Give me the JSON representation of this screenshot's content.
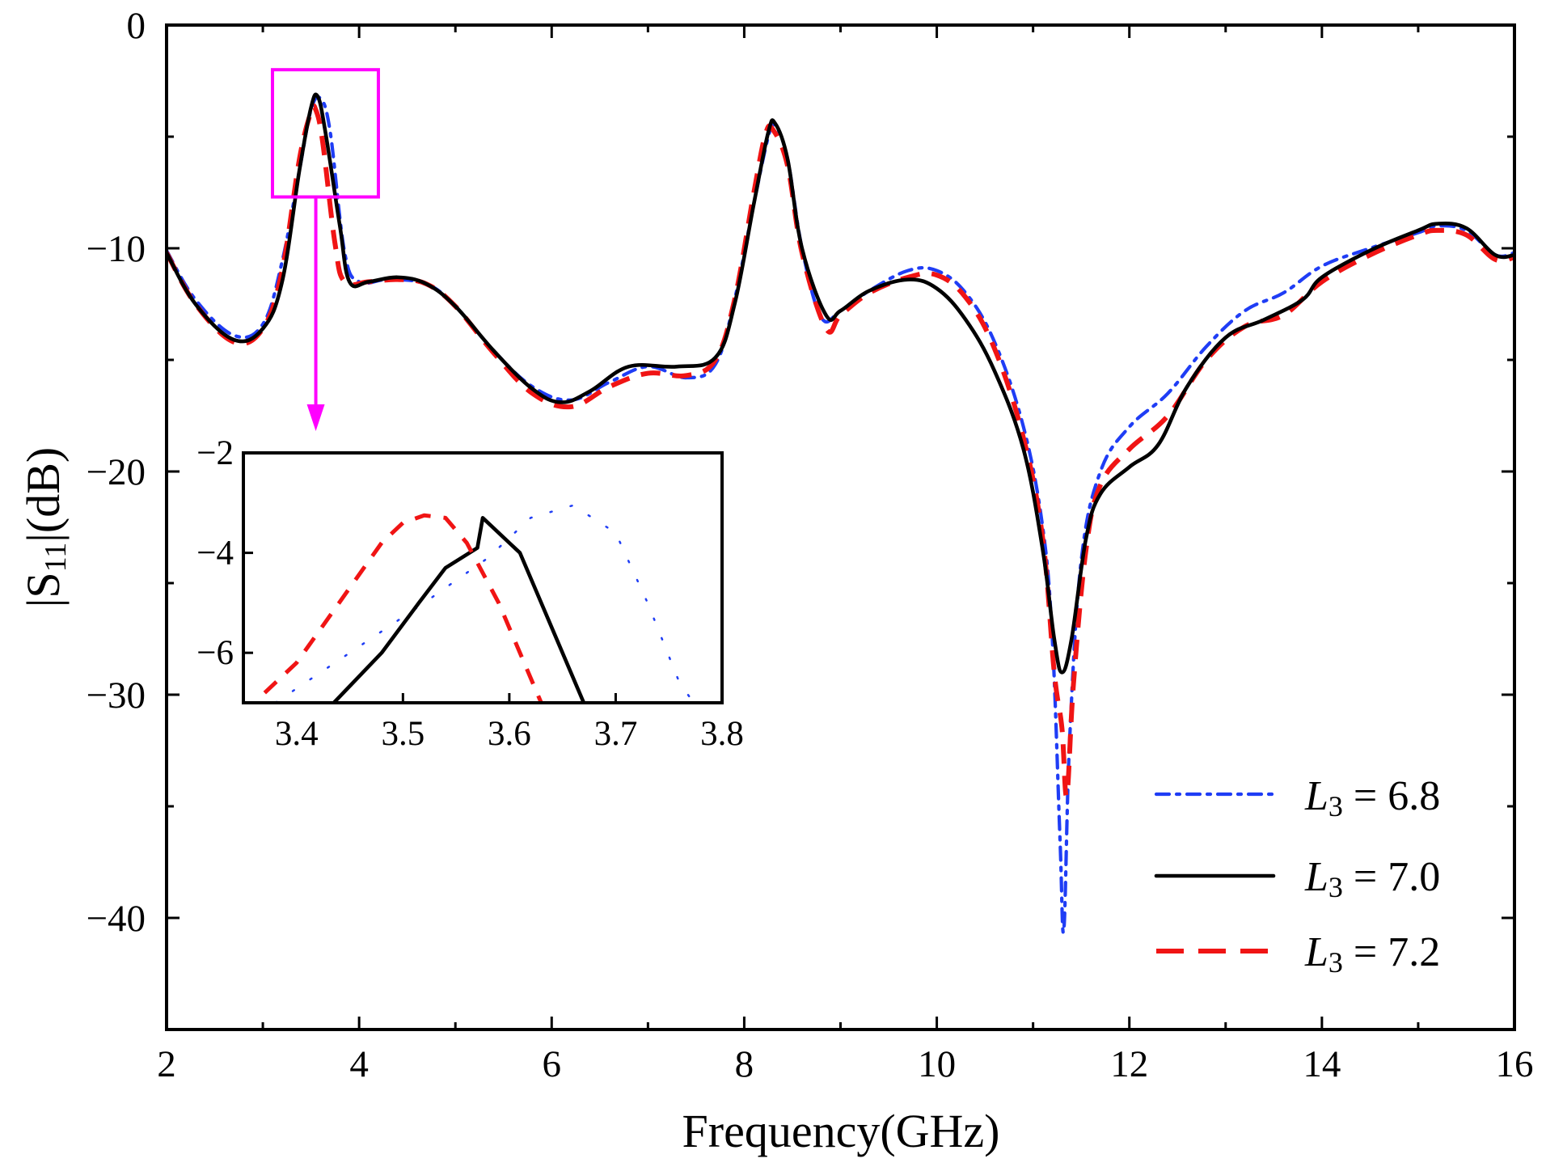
{
  "chart_data": {
    "type": "line",
    "title": "",
    "xlabel": "Frequency(GHz)",
    "ylabel": {
      "pre": "|S",
      "sub": "11",
      "post": "|(dB)"
    },
    "xlim": [
      2,
      16
    ],
    "ylim": [
      -45,
      0
    ],
    "xticks": [
      2,
      4,
      6,
      8,
      10,
      12,
      14,
      16
    ],
    "yticks": [
      0,
      -10,
      -20,
      -30,
      -40
    ],
    "legend_position": "bottom-right",
    "colors": {
      "l3_6_8": "#1f3df5",
      "l3_7_0": "#000000",
      "l3_7_2": "#f01414",
      "zoom_box": "#ff00ff"
    },
    "legend": [
      {
        "symbol": "L",
        "sub": "3",
        "text": " = 6.8"
      },
      {
        "symbol": "L",
        "sub": "3",
        "text": " = 7.0"
      },
      {
        "symbol": "L",
        "sub": "3",
        "text": " = 7.2"
      }
    ],
    "series": [
      {
        "name": "L3 = 6.8",
        "style": "dash-dot",
        "points": [
          [
            2,
            -10.1
          ],
          [
            2.3,
            -12.3
          ],
          [
            2.7,
            -13.9
          ],
          [
            3.0,
            -13.4
          ],
          [
            3.2,
            -10.6
          ],
          [
            3.38,
            -6.5
          ],
          [
            3.5,
            -3.8
          ],
          [
            3.6,
            -3.3
          ],
          [
            3.7,
            -4.8
          ],
          [
            3.85,
            -10.2
          ],
          [
            4.0,
            -11.5
          ],
          [
            4.3,
            -11.4
          ],
          [
            4.7,
            -11.6
          ],
          [
            5.0,
            -12.6
          ],
          [
            5.4,
            -14.6
          ],
          [
            5.8,
            -16.2
          ],
          [
            6.2,
            -16.8
          ],
          [
            6.6,
            -16.0
          ],
          [
            7.0,
            -15.3
          ],
          [
            7.4,
            -15.8
          ],
          [
            7.7,
            -15.2
          ],
          [
            7.9,
            -12.3
          ],
          [
            8.1,
            -8.0
          ],
          [
            8.25,
            -5.0
          ],
          [
            8.32,
            -4.5
          ],
          [
            8.45,
            -6.0
          ],
          [
            8.6,
            -10.0
          ],
          [
            8.8,
            -13.1
          ],
          [
            9.0,
            -12.8
          ],
          [
            9.3,
            -11.9
          ],
          [
            9.7,
            -11.0
          ],
          [
            10.0,
            -11.0
          ],
          [
            10.3,
            -12.0
          ],
          [
            10.6,
            -14.2
          ],
          [
            10.9,
            -18.0
          ],
          [
            11.1,
            -22.5
          ],
          [
            11.2,
            -27.5
          ],
          [
            11.28,
            -36.5
          ],
          [
            11.32,
            -40.5
          ],
          [
            11.38,
            -32.0
          ],
          [
            11.5,
            -24.0
          ],
          [
            11.7,
            -20.0
          ],
          [
            12.0,
            -18.0
          ],
          [
            12.4,
            -16.5
          ],
          [
            12.8,
            -14.4
          ],
          [
            13.2,
            -12.8
          ],
          [
            13.6,
            -12.0
          ],
          [
            14.0,
            -10.8
          ],
          [
            14.5,
            -10.0
          ],
          [
            15.0,
            -9.3
          ],
          [
            15.2,
            -9.0
          ],
          [
            15.5,
            -9.2
          ],
          [
            15.8,
            -10.3
          ],
          [
            16.0,
            -10.2
          ]
        ]
      },
      {
        "name": "L3 = 7.0",
        "style": "solid",
        "points": [
          [
            2,
            -10.2
          ],
          [
            2.3,
            -12.5
          ],
          [
            2.7,
            -14.1
          ],
          [
            3.0,
            -13.6
          ],
          [
            3.2,
            -11.5
          ],
          [
            3.38,
            -6.5
          ],
          [
            3.5,
            -3.7
          ],
          [
            3.57,
            -3.2
          ],
          [
            3.65,
            -4.8
          ],
          [
            3.8,
            -9.0
          ],
          [
            3.9,
            -11.5
          ],
          [
            4.1,
            -11.5
          ],
          [
            4.4,
            -11.3
          ],
          [
            4.7,
            -11.6
          ],
          [
            5.0,
            -12.6
          ],
          [
            5.4,
            -14.6
          ],
          [
            5.8,
            -16.3
          ],
          [
            6.1,
            -16.9
          ],
          [
            6.4,
            -16.4
          ],
          [
            6.8,
            -15.3
          ],
          [
            7.3,
            -15.3
          ],
          [
            7.7,
            -14.9
          ],
          [
            7.9,
            -12.5
          ],
          [
            8.1,
            -8.0
          ],
          [
            8.25,
            -4.8
          ],
          [
            8.32,
            -4.4
          ],
          [
            8.45,
            -6.0
          ],
          [
            8.6,
            -10.0
          ],
          [
            8.85,
            -13.0
          ],
          [
            9.0,
            -12.8
          ],
          [
            9.3,
            -11.9
          ],
          [
            9.7,
            -11.4
          ],
          [
            10.0,
            -11.8
          ],
          [
            10.3,
            -13.2
          ],
          [
            10.6,
            -15.5
          ],
          [
            10.9,
            -19.0
          ],
          [
            11.1,
            -23.5
          ],
          [
            11.22,
            -27.5
          ],
          [
            11.3,
            -29.0
          ],
          [
            11.4,
            -27.5
          ],
          [
            11.55,
            -23.0
          ],
          [
            11.7,
            -21.0
          ],
          [
            12.0,
            -19.8
          ],
          [
            12.3,
            -18.8
          ],
          [
            12.6,
            -16.2
          ],
          [
            13.0,
            -14.0
          ],
          [
            13.4,
            -13.2
          ],
          [
            13.8,
            -12.3
          ],
          [
            14.0,
            -11.3
          ],
          [
            14.5,
            -10.1
          ],
          [
            15.0,
            -9.2
          ],
          [
            15.2,
            -8.9
          ],
          [
            15.5,
            -9.1
          ],
          [
            15.8,
            -10.3
          ],
          [
            16.0,
            -10.3
          ]
        ]
      },
      {
        "name": "L3 = 7.2",
        "style": "dashed",
        "points": [
          [
            2,
            -10.2
          ],
          [
            2.3,
            -12.5
          ],
          [
            2.7,
            -14.2
          ],
          [
            3.0,
            -13.6
          ],
          [
            3.2,
            -11.0
          ],
          [
            3.38,
            -6.0
          ],
          [
            3.5,
            -3.9
          ],
          [
            3.55,
            -3.8
          ],
          [
            3.62,
            -5.2
          ],
          [
            3.75,
            -9.8
          ],
          [
            3.85,
            -11.5
          ],
          [
            4.1,
            -11.5
          ],
          [
            4.4,
            -11.4
          ],
          [
            4.7,
            -11.6
          ],
          [
            5.0,
            -12.6
          ],
          [
            5.4,
            -14.7
          ],
          [
            5.8,
            -16.5
          ],
          [
            6.2,
            -17.1
          ],
          [
            6.6,
            -16.2
          ],
          [
            7.0,
            -15.6
          ],
          [
            7.4,
            -15.7
          ],
          [
            7.7,
            -15.0
          ],
          [
            7.9,
            -12.3
          ],
          [
            8.1,
            -7.5
          ],
          [
            8.22,
            -4.9
          ],
          [
            8.3,
            -4.7
          ],
          [
            8.45,
            -6.3
          ],
          [
            8.6,
            -10.2
          ],
          [
            8.85,
            -13.6
          ],
          [
            9.0,
            -13.0
          ],
          [
            9.3,
            -12.0
          ],
          [
            9.7,
            -11.3
          ],
          [
            10.0,
            -11.2
          ],
          [
            10.3,
            -12.2
          ],
          [
            10.6,
            -14.5
          ],
          [
            10.9,
            -18.5
          ],
          [
            11.1,
            -23.0
          ],
          [
            11.22,
            -29.0
          ],
          [
            11.3,
            -31.5
          ],
          [
            11.35,
            -34.5
          ],
          [
            11.42,
            -29.5
          ],
          [
            11.55,
            -23.5
          ],
          [
            11.7,
            -20.6
          ],
          [
            12.0,
            -19.0
          ],
          [
            12.4,
            -17.5
          ],
          [
            12.8,
            -15.0
          ],
          [
            13.2,
            -13.5
          ],
          [
            13.6,
            -13.0
          ],
          [
            14.0,
            -11.5
          ],
          [
            14.5,
            -10.3
          ],
          [
            15.0,
            -9.4
          ],
          [
            15.2,
            -9.2
          ],
          [
            15.5,
            -9.4
          ],
          [
            15.8,
            -10.5
          ],
          [
            16.0,
            -10.4
          ]
        ]
      }
    ],
    "zoom_region": {
      "x": [
        3.1,
        4.2
      ],
      "y": [
        -7.7,
        -2
      ]
    },
    "inset": {
      "xlim": [
        3.35,
        3.8
      ],
      "ylim": [
        -7,
        -2
      ],
      "xticks": [
        3.4,
        3.5,
        3.6,
        3.7,
        3.8
      ],
      "yticks": [
        -2,
        -4,
        -6
      ],
      "tick_labels_x": [
        "3.4",
        "3.5",
        "3.6",
        "3.7",
        "3.8"
      ],
      "tick_labels_y": [
        "−2",
        "−4",
        "−6"
      ],
      "series": [
        {
          "name": "L3 = 6.8",
          "style": "dotted",
          "points": [
            [
              3.38,
              -7.0
            ],
            [
              3.45,
              -6.0
            ],
            [
              3.52,
              -5.0
            ],
            [
              3.58,
              -4.1
            ],
            [
              3.62,
              -3.3
            ],
            [
              3.66,
              -3.05
            ],
            [
              3.7,
              -3.6
            ],
            [
              3.73,
              -5.0
            ],
            [
              3.76,
              -6.6
            ],
            [
              3.78,
              -7.2
            ]
          ]
        },
        {
          "name": "L3 = 7.0",
          "style": "solid",
          "points": [
            [
              3.435,
              -7.0
            ],
            [
              3.48,
              -6.0
            ],
            [
              3.515,
              -5.0
            ],
            [
              3.54,
              -4.3
            ],
            [
              3.57,
              -3.9
            ],
            [
              3.575,
              -3.3
            ],
            [
              3.61,
              -4.0
            ],
            [
              3.64,
              -5.5
            ],
            [
              3.67,
              -7.0
            ]
          ]
        },
        {
          "name": "L3 = 7.2",
          "style": "dashed",
          "points": [
            [
              3.37,
              -6.8
            ],
            [
              3.4,
              -6.2
            ],
            [
              3.44,
              -5.0
            ],
            [
              3.48,
              -3.8
            ],
            [
              3.5,
              -3.4
            ],
            [
              3.52,
              -3.25
            ],
            [
              3.54,
              -3.3
            ],
            [
              3.56,
              -3.8
            ],
            [
              3.59,
              -5.0
            ],
            [
              3.62,
              -6.5
            ],
            [
              3.63,
              -7.0
            ]
          ]
        }
      ]
    },
    "tick_labels_x": [
      "2",
      "4",
      "6",
      "8",
      "10",
      "12",
      "14",
      "16"
    ],
    "tick_labels_y": [
      "0",
      "−10",
      "−20",
      "−30",
      "−40"
    ]
  }
}
